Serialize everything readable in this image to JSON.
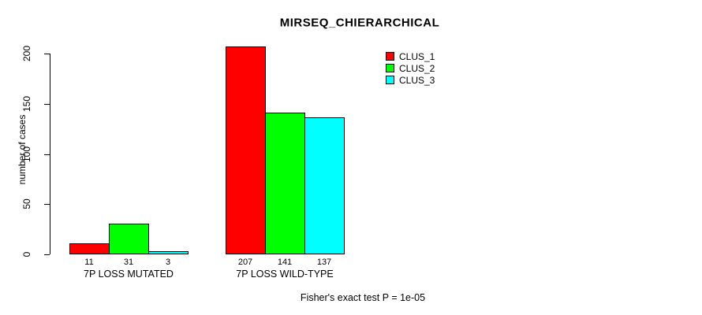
{
  "chart_data": {
    "type": "bar",
    "title": "MIRSEQ_CHIERARCHICAL",
    "ylabel": "number of cases",
    "xlabel": "",
    "categories": [
      "7P LOSS MUTATED",
      "7P LOSS WILD-TYPE"
    ],
    "series": [
      {
        "name": "CLUS_1",
        "color": "#ff0000",
        "values": [
          11,
          207
        ]
      },
      {
        "name": "CLUS_2",
        "color": "#00ff00",
        "values": [
          31,
          141
        ]
      },
      {
        "name": "CLUS_3",
        "color": "#00ffff",
        "values": [
          3,
          137
        ]
      }
    ],
    "yticks": [
      0,
      50,
      100,
      150,
      200
    ],
    "ylim": [
      0,
      200
    ],
    "grid": false,
    "legend_position": "top-right",
    "annotation": "Fisher's exact test P = 1e-05"
  },
  "colors": {
    "background": "#ffffff",
    "axis": "#000000",
    "text": "#000000",
    "bar_border": "#000000"
  }
}
